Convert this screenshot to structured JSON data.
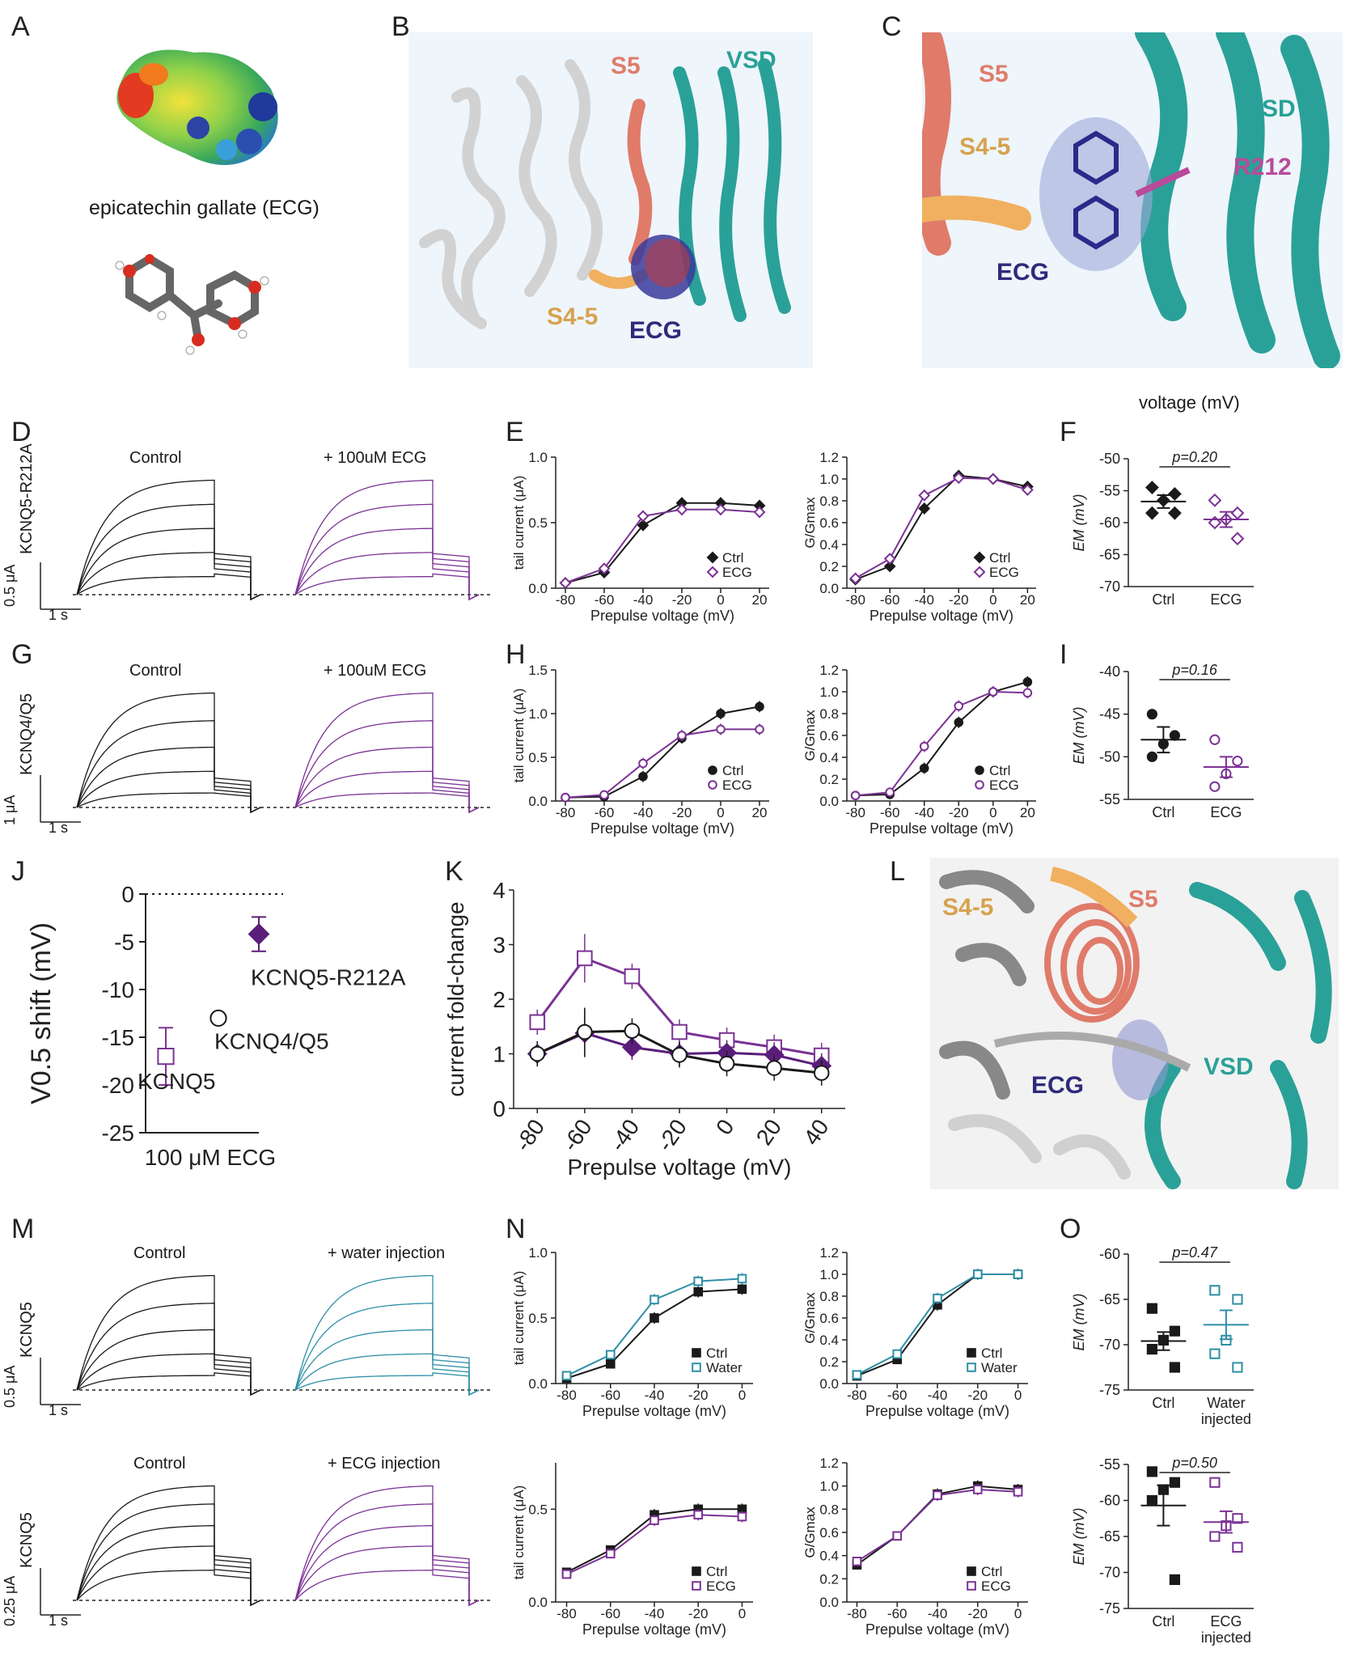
{
  "panel_letters": [
    "A",
    "B",
    "C",
    "D",
    "E",
    "F",
    "G",
    "H",
    "I",
    "J",
    "K",
    "L",
    "M",
    "N",
    "O"
  ],
  "panelA": {
    "caption": "epicatechin gallate (ECG)"
  },
  "panelB": {
    "labels": [
      "S5",
      "VSD",
      "S4-5",
      "ECG"
    ]
  },
  "panelC": {
    "labels": [
      "S5",
      "S4-5",
      "VSD",
      "R212",
      "ECG"
    ]
  },
  "floating_text": "voltage (mV)",
  "panelD": {
    "construct": "KCNQ5-R212A",
    "control": "Control",
    "treated": "+ 100uM ECG",
    "scale_current": "0.5 μA",
    "scale_time": "1 s"
  },
  "panelG": {
    "construct": "KCNQ4/Q5",
    "control": "Control",
    "treated": "+ 100uM ECG",
    "scale_current": "1 μA",
    "scale_time": "1 s"
  },
  "panelM": {
    "top": {
      "construct": "KCNQ5",
      "control": "Control",
      "treated": "+ water injection",
      "scale_current": "0.5 μA",
      "scale_time": "1 s"
    },
    "bottom": {
      "construct": "KCNQ5",
      "control": "Control",
      "treated": "+ ECG injection",
      "scale_current": "0.25 μA",
      "scale_time": "1 s"
    }
  },
  "panelL": {
    "labels": [
      "S4-5",
      "S5",
      "ECG",
      "VSD"
    ]
  },
  "colors": {
    "ctrl": "#1a1a1a",
    "ecg": "#7b3294",
    "water": "#2e8fa6",
    "vsd": "#2aa198",
    "s5": "#e07b6a",
    "s45": "#f0b060",
    "ecg_mol": "#2f2a7a"
  },
  "chart_data": [
    {
      "id": "E-left",
      "type": "line",
      "xlabel": "Prepulse voltage (mV)",
      "ylabel": "tail current (μA)",
      "xlim": [
        -85,
        25
      ],
      "ylim": [
        0,
        1.0
      ],
      "xticks": [
        "-80",
        "-60",
        "-40",
        "-20",
        "0",
        "20"
      ],
      "yticks": [
        "0.0",
        "0.5",
        "1.0"
      ],
      "x": [
        -80,
        -60,
        -40,
        -20,
        0,
        20
      ],
      "series": [
        {
          "name": "Ctrl",
          "marker": "filled-diamond",
          "values": [
            0.04,
            0.12,
            0.48,
            0.65,
            0.65,
            0.63
          ]
        },
        {
          "name": "ECG",
          "marker": "open-diamond",
          "values": [
            0.04,
            0.15,
            0.55,
            0.6,
            0.6,
            0.58
          ]
        }
      ]
    },
    {
      "id": "E-right",
      "type": "line",
      "xlabel": "Prepulse voltage (mV)",
      "ylabel": "G/Gmax",
      "xlim": [
        -85,
        25
      ],
      "ylim": [
        0,
        1.2
      ],
      "xticks": [
        "-80",
        "-60",
        "-40",
        "-20",
        "0",
        "20"
      ],
      "yticks": [
        "0.0",
        "0.2",
        "0.4",
        "0.6",
        "0.8",
        "1.0",
        "1.2"
      ],
      "x": [
        -80,
        -60,
        -40,
        -20,
        0,
        20
      ],
      "series": [
        {
          "name": "Ctrl",
          "marker": "filled-diamond",
          "values": [
            0.08,
            0.2,
            0.73,
            1.03,
            1.0,
            0.93
          ]
        },
        {
          "name": "ECG",
          "marker": "open-diamond",
          "values": [
            0.09,
            0.27,
            0.85,
            1.01,
            1.0,
            0.9
          ]
        }
      ]
    },
    {
      "id": "F",
      "type": "scatter",
      "ylabel": "EM (mV)",
      "ylim": [
        -70,
        -50
      ],
      "yticks": [
        "-50",
        "-55",
        "-60",
        "-65",
        "-70"
      ],
      "categories": [
        "Ctrl",
        "ECG"
      ],
      "annotation": "p=0.20",
      "series": [
        {
          "name": "Ctrl",
          "marker": "filled-diamond",
          "values": [
            -54.5,
            -55.5,
            -56.5,
            -58.5,
            -58.5
          ],
          "mean": -56.7,
          "sem": 1.0
        },
        {
          "name": "ECG",
          "marker": "open-diamond",
          "values": [
            -56.5,
            -58.5,
            -59.5,
            -60,
            -62.5
          ],
          "mean": -59.5,
          "sem": 1.2
        }
      ]
    },
    {
      "id": "H-left",
      "type": "line",
      "xlabel": "Prepulse voltage (mV)",
      "ylabel": "tail current (μA)",
      "xlim": [
        -85,
        25
      ],
      "ylim": [
        0,
        1.5
      ],
      "xticks": [
        "-80",
        "-60",
        "-40",
        "-20",
        "0",
        "20"
      ],
      "yticks": [
        "0.0",
        "0.5",
        "1.0",
        "1.5"
      ],
      "x": [
        -80,
        -60,
        -40,
        -20,
        0,
        20
      ],
      "series": [
        {
          "name": "Ctrl",
          "marker": "filled-circle",
          "values": [
            0.04,
            0.05,
            0.28,
            0.72,
            1.0,
            1.08
          ]
        },
        {
          "name": "ECG",
          "marker": "open-circle",
          "values": [
            0.04,
            0.07,
            0.43,
            0.75,
            0.82,
            0.82
          ]
        }
      ]
    },
    {
      "id": "H-right",
      "type": "line",
      "xlabel": "Prepulse voltage (mV)",
      "ylabel": "G/Gmax",
      "xlim": [
        -85,
        25
      ],
      "ylim": [
        0,
        1.2
      ],
      "xticks": [
        "-80",
        "-60",
        "-40",
        "-20",
        "0",
        "20"
      ],
      "yticks": [
        "0.0",
        "0.2",
        "0.4",
        "0.6",
        "0.8",
        "1.0",
        "1.2"
      ],
      "x": [
        -80,
        -60,
        -40,
        -20,
        0,
        20
      ],
      "series": [
        {
          "name": "Ctrl",
          "marker": "filled-circle",
          "values": [
            0.05,
            0.06,
            0.3,
            0.72,
            1.0,
            1.09
          ]
        },
        {
          "name": "ECG",
          "marker": "open-circle",
          "values": [
            0.05,
            0.08,
            0.5,
            0.87,
            1.0,
            0.99
          ]
        }
      ]
    },
    {
      "id": "I",
      "type": "scatter",
      "ylabel": "EM (mV)",
      "ylim": [
        -55,
        -40
      ],
      "yticks": [
        "-40",
        "-45",
        "-50",
        "-55"
      ],
      "categories": [
        "Ctrl",
        "ECG"
      ],
      "annotation": "p=0.16",
      "series": [
        {
          "name": "Ctrl",
          "marker": "filled-circle",
          "values": [
            -45,
            -47.5,
            -48.5,
            -50
          ],
          "mean": -48,
          "sem": 1.5
        },
        {
          "name": "ECG",
          "marker": "open-circle",
          "values": [
            -48,
            -50.5,
            -52,
            -53.5
          ],
          "mean": -51.2,
          "sem": 1.2
        }
      ]
    },
    {
      "id": "J",
      "type": "scatter",
      "ylabel": "V0.5 shift (mV)",
      "xlabel": "100 μM ECG",
      "ylim": [
        -25,
        0
      ],
      "yticks": [
        "0",
        "-5",
        "-10",
        "-15",
        "-20",
        "-25"
      ],
      "series": [
        {
          "name": "KCNQ5",
          "marker": "open-square",
          "value": -17,
          "sem": 3
        },
        {
          "name": "KCNQ4/Q5",
          "marker": "open-circle",
          "value": -13,
          "sem": 0
        },
        {
          "name": "KCNQ5-R212A",
          "marker": "filled-diamond",
          "value": -4.2,
          "sem": 1.8
        }
      ]
    },
    {
      "id": "K",
      "type": "line",
      "xlabel": "Prepulse voltage (mV)",
      "ylabel": "current fold-change",
      "xlim": [
        -90,
        50
      ],
      "ylim": [
        0,
        4
      ],
      "xticks": [
        "-80",
        "-60",
        "-40",
        "-20",
        "0",
        "20",
        "40"
      ],
      "yticks": [
        "0",
        "1",
        "2",
        "3",
        "4"
      ],
      "x": [
        -80,
        -60,
        -40,
        -20,
        0,
        20,
        40
      ],
      "series": [
        {
          "name": "KCNQ5",
          "marker": "open-square",
          "values": [
            1.58,
            2.75,
            2.42,
            1.4,
            1.25,
            1.12,
            0.97
          ]
        },
        {
          "name": "KCNQ5-R212A",
          "marker": "filled-diamond",
          "values": [
            1.0,
            1.38,
            1.12,
            1.0,
            1.02,
            0.98,
            0.78
          ]
        },
        {
          "name": "KCNQ4/Q5",
          "marker": "open-circle",
          "values": [
            1.0,
            1.4,
            1.42,
            0.98,
            0.82,
            0.74,
            0.65
          ]
        }
      ]
    },
    {
      "id": "N-top-left",
      "type": "line",
      "xlabel": "Prepulse voltage (mV)",
      "ylabel": "tail current (μA)",
      "xlim": [
        -85,
        5
      ],
      "ylim": [
        0,
        1.0
      ],
      "xticks": [
        "-80",
        "-60",
        "-40",
        "-20",
        "0"
      ],
      "yticks": [
        "0.0",
        "0.5",
        "1.0"
      ],
      "x": [
        -80,
        -60,
        -40,
        -20,
        0
      ],
      "series": [
        {
          "name": "Ctrl",
          "marker": "filled-square",
          "values": [
            0.04,
            0.15,
            0.5,
            0.7,
            0.72
          ]
        },
        {
          "name": "Water",
          "marker": "open-square",
          "values": [
            0.06,
            0.22,
            0.64,
            0.78,
            0.8
          ]
        }
      ]
    },
    {
      "id": "N-top-right",
      "type": "line",
      "xlabel": "Prepulse voltage (mV)",
      "ylabel": "G/Gmax",
      "xlim": [
        -85,
        5
      ],
      "ylim": [
        0,
        1.2
      ],
      "xticks": [
        "-80",
        "-60",
        "-40",
        "-20",
        "0"
      ],
      "yticks": [
        "0.0",
        "0.2",
        "0.4",
        "0.6",
        "0.8",
        "1.0",
        "1.2"
      ],
      "x": [
        -80,
        -60,
        -40,
        -20,
        0
      ],
      "series": [
        {
          "name": "Ctrl",
          "marker": "filled-square",
          "values": [
            0.07,
            0.22,
            0.72,
            1.0,
            1.0
          ]
        },
        {
          "name": "Water",
          "marker": "open-square",
          "values": [
            0.08,
            0.27,
            0.78,
            1.0,
            1.0
          ]
        }
      ]
    },
    {
      "id": "O-top",
      "type": "scatter",
      "ylabel": "EM (mV)",
      "ylim": [
        -75,
        -60
      ],
      "yticks": [
        "-60",
        "-65",
        "-70",
        "-75"
      ],
      "categories": [
        "Ctrl",
        "Water injected"
      ],
      "annotation": "p=0.47",
      "series": [
        {
          "name": "Ctrl",
          "marker": "filled-square",
          "values": [
            -66,
            -68.5,
            -69.5,
            -70.5,
            -72.5
          ],
          "mean": -69.6,
          "sem": 1.0
        },
        {
          "name": "Water injected",
          "marker": "open-square",
          "values": [
            -64,
            -65,
            -69.5,
            -71,
            -72.5
          ],
          "mean": -67.8,
          "sem": 1.6
        }
      ]
    },
    {
      "id": "N-bottom-left",
      "type": "line",
      "xlabel": "Prepulse voltage (mV)",
      "ylabel": "tail current (μA)",
      "xlim": [
        -85,
        5
      ],
      "ylim": [
        0,
        0.75
      ],
      "xticks": [
        "-80",
        "-60",
        "-40",
        "-20",
        "0"
      ],
      "yticks": [
        "0.0",
        "0.5"
      ],
      "x": [
        -80,
        -60,
        -40,
        -20,
        0
      ],
      "series": [
        {
          "name": "Ctrl",
          "marker": "filled-square",
          "values": [
            0.16,
            0.28,
            0.47,
            0.5,
            0.5
          ]
        },
        {
          "name": "ECG",
          "marker": "open-square",
          "values": [
            0.15,
            0.26,
            0.44,
            0.47,
            0.46
          ]
        }
      ]
    },
    {
      "id": "N-bottom-right",
      "type": "line",
      "xlabel": "Prepulse voltage (mV)",
      "ylabel": "G/Gmax",
      "xlim": [
        -85,
        5
      ],
      "ylim": [
        0,
        1.2
      ],
      "xticks": [
        "-80",
        "-60",
        "-40",
        "-20",
        "0"
      ],
      "yticks": [
        "0.0",
        "0.2",
        "0.4",
        "0.6",
        "0.8",
        "1.0",
        "1.2"
      ],
      "x": [
        -80,
        -60,
        -40,
        -20,
        0
      ],
      "series": [
        {
          "name": "Ctrl",
          "marker": "filled-square",
          "values": [
            0.32,
            0.57,
            0.93,
            1.0,
            0.97
          ]
        },
        {
          "name": "ECG",
          "marker": "open-square",
          "values": [
            0.35,
            0.57,
            0.92,
            0.97,
            0.95
          ]
        }
      ]
    },
    {
      "id": "O-bottom",
      "type": "scatter",
      "ylabel": "EM (mV)",
      "ylim": [
        -75,
        -55
      ],
      "yticks": [
        "-55",
        "-60",
        "-65",
        "-70",
        "-75"
      ],
      "categories": [
        "Ctrl",
        "ECG injected"
      ],
      "annotation": "p=0.50",
      "series": [
        {
          "name": "Ctrl",
          "marker": "filled-square",
          "values": [
            -56,
            -57.5,
            -58.5,
            -60,
            -71
          ],
          "mean": -60.7,
          "sem": 2.8
        },
        {
          "name": "ECG injected",
          "marker": "open-square",
          "values": [
            -57.5,
            -62.5,
            -63.5,
            -65,
            -66.5
          ],
          "mean": -63,
          "sem": 1.5
        }
      ]
    }
  ]
}
